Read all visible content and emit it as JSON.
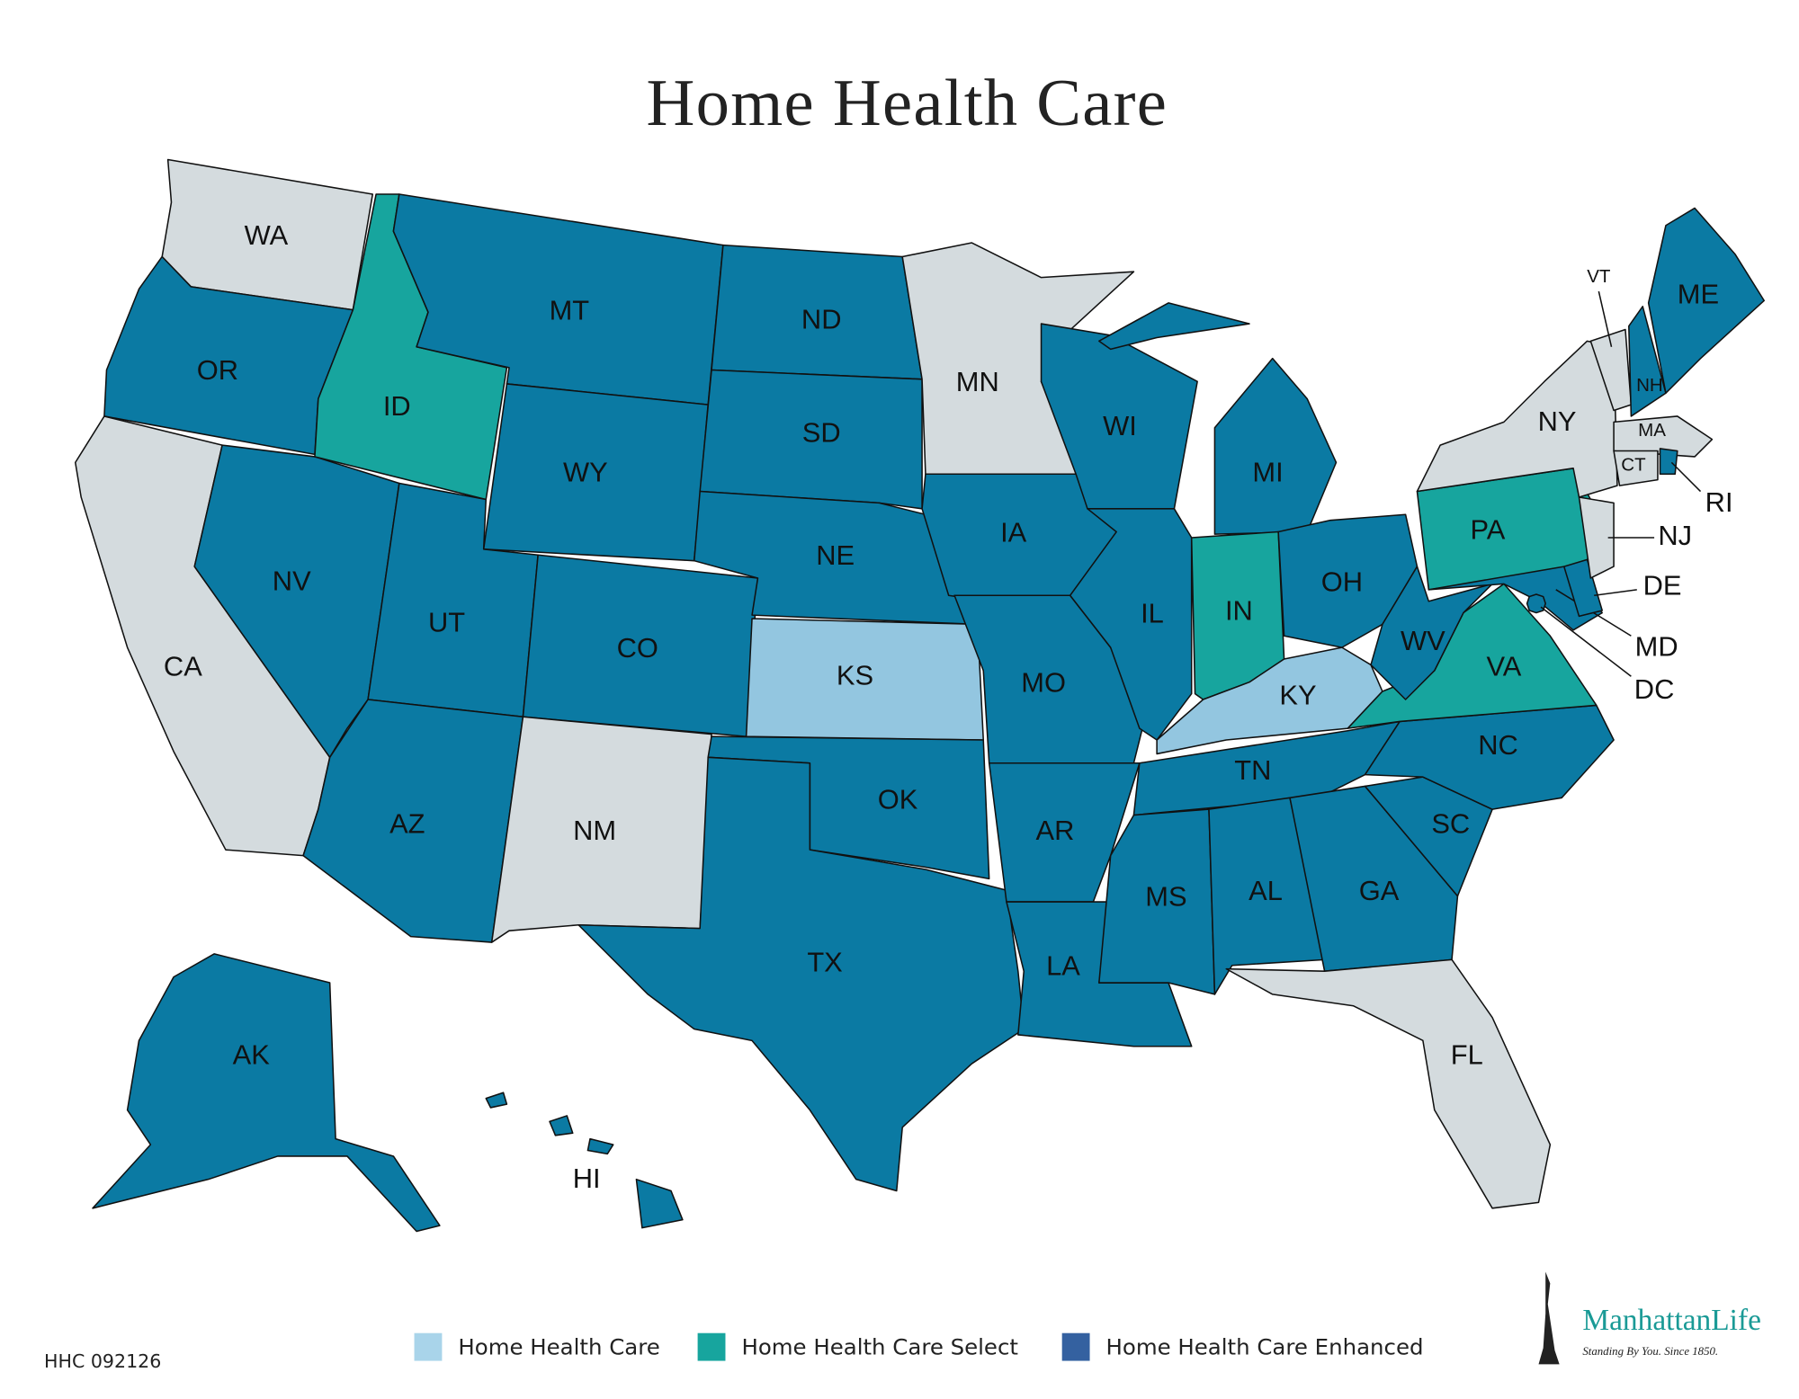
{
  "title": "Home Health Care",
  "states": [
    {
      "label": "WA",
      "color": "#d4dbde"
    },
    {
      "label": "OR",
      "color": "#0b7aa3"
    },
    {
      "label": "CA",
      "color": "#d4dbde"
    },
    {
      "label": "NV",
      "color": "#0b7aa3"
    },
    {
      "label": "ID",
      "color": "#17a59e"
    },
    {
      "label": "MT",
      "color": "#0b7aa3"
    },
    {
      "label": "WY",
      "color": "#0b7aa3"
    },
    {
      "label": "UT",
      "color": "#0b7aa3"
    },
    {
      "label": "CO",
      "color": "#0b7aa3"
    },
    {
      "label": "AZ",
      "color": "#0b7aa3"
    },
    {
      "label": "NM",
      "color": "#d4dbde"
    },
    {
      "label": "ND",
      "color": "#0b7aa3"
    },
    {
      "label": "SD",
      "color": "#0b7aa3"
    },
    {
      "label": "NE",
      "color": "#0b7aa3"
    },
    {
      "label": "KS",
      "color": "#93c6e0"
    },
    {
      "label": "OK",
      "color": "#0b7aa3"
    },
    {
      "label": "TX",
      "color": "#0b7aa3"
    },
    {
      "label": "MN",
      "color": "#d4dbde"
    },
    {
      "label": "IA",
      "color": "#0b7aa3"
    },
    {
      "label": "MO",
      "color": "#0b7aa3"
    },
    {
      "label": "AR",
      "color": "#0b7aa3"
    },
    {
      "label": "LA",
      "color": "#0b7aa3"
    },
    {
      "label": "WI",
      "color": "#0b7aa3"
    },
    {
      "label": "IL",
      "color": "#0b7aa3"
    },
    {
      "label": "MI",
      "color": "#0b7aa3"
    },
    {
      "label": "IN",
      "color": "#17a59e"
    },
    {
      "label": "OH",
      "color": "#0b7aa3"
    },
    {
      "label": "KY",
      "color": "#93c6e0"
    },
    {
      "label": "TN",
      "color": "#0b7aa3"
    },
    {
      "label": "MS",
      "color": "#0b7aa3"
    },
    {
      "label": "AL",
      "color": "#0b7aa3"
    },
    {
      "label": "GA",
      "color": "#0b7aa3"
    },
    {
      "label": "FL",
      "color": "#d4dbde"
    },
    {
      "label": "SC",
      "color": "#0b7aa3"
    },
    {
      "label": "NC",
      "color": "#0b7aa3"
    },
    {
      "label": "VA",
      "color": "#17a59e"
    },
    {
      "label": "WV",
      "color": "#0b7aa3"
    },
    {
      "label": "PA",
      "color": "#17a59e"
    },
    {
      "label": "MD",
      "color": "#0b7aa3"
    },
    {
      "label": "DE",
      "color": "#0b7aa3"
    },
    {
      "label": "NJ",
      "color": "#d4dbde"
    },
    {
      "label": "NY",
      "color": "#d4dbde"
    },
    {
      "label": "VT",
      "color": "#d4dbde"
    },
    {
      "label": "NH",
      "color": "#0b7aa3"
    },
    {
      "label": "ME",
      "color": "#0b7aa3"
    },
    {
      "label": "MA",
      "color": "#d4dbde"
    },
    {
      "label": "CT",
      "color": "#d4dbde"
    },
    {
      "label": "RI",
      "color": "#0b7aa3"
    },
    {
      "label": "DC",
      "color": "#0b7aa3"
    },
    {
      "label": "AK",
      "color": "#0b7aa3"
    },
    {
      "label": "HI",
      "color": "#0b7aa3"
    }
  ],
  "legend": [
    {
      "label": "Home Health Care",
      "color": "#a9d4ea"
    },
    {
      "label": "Home Health Care Select",
      "color": "#17a59e"
    },
    {
      "label": "Home Health Care Enhanced",
      "color": "#3461a0"
    }
  ],
  "code": "HHC 092126",
  "logo": {
    "name": "ManhattanLife",
    "tagline": "Standing By You. Since 1850."
  }
}
